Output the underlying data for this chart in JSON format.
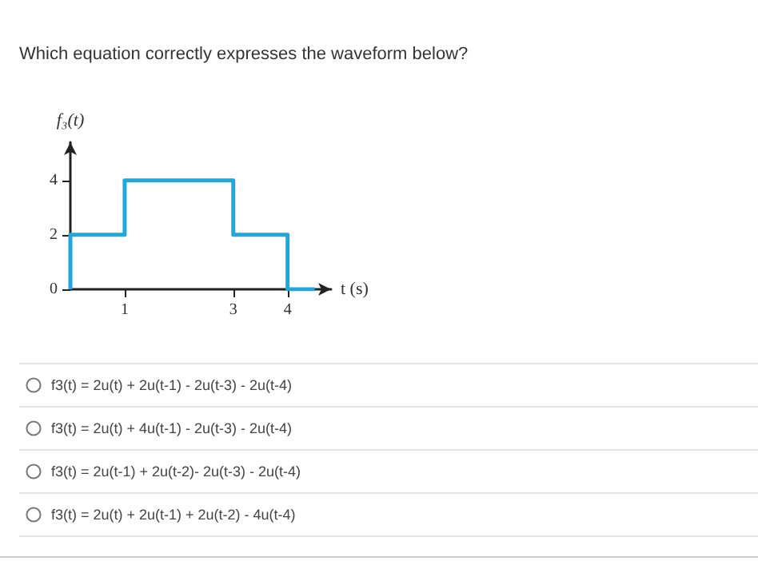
{
  "chart_data": {
    "type": "step",
    "title": "Which equation correctly expresses the waveform below?",
    "xlabel": "t (s)",
    "ylabel": "f₃(t)",
    "x": [
      0,
      0,
      1,
      3,
      4,
      4.5
    ],
    "series": [
      {
        "color": "#1ea7e1",
        "values": [
          0,
          2,
          4,
          2,
          0,
          0
        ]
      }
    ],
    "xlim": [
      0,
      4.8
    ],
    "xticks": [
      1,
      3,
      4
    ],
    "ylim": [
      0,
      5.4
    ],
    "yticks": [
      0,
      2,
      4
    ],
    "grid": false,
    "marker": "none",
    "line_style": "solid",
    "annotations": [
      "f3(t) = 2u(t) + 2u(t-1) - 2u(t-3) - 2u(t-4)",
      "f3(t) = 2u(t) + 4u(t-1) - 2u(t-3) - 2u(t-4)",
      "f3(t) = 2u(t-1) + 2u(t-2)- 2u(t-3) - 2u(t-4)",
      "f3(t) = 2u(t) + 2u(t-1) + 2u(t-2) - 4u(t-4)"
    ]
  }
}
